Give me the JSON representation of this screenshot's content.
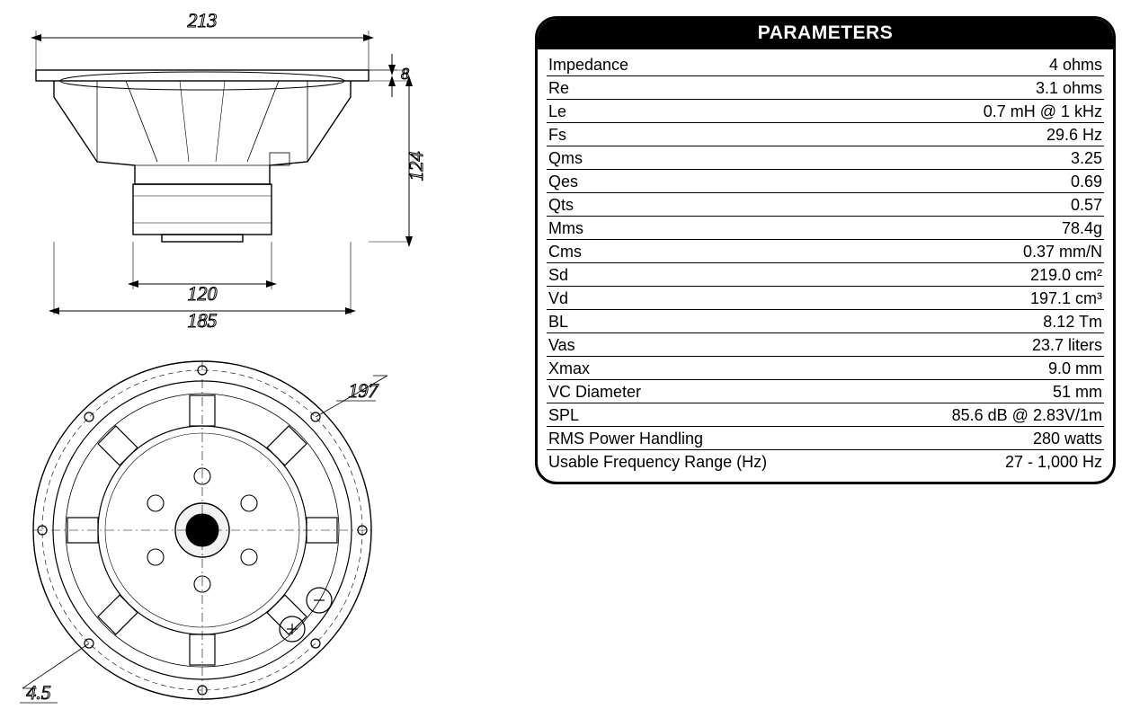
{
  "parameters": {
    "title": "PARAMETERS",
    "rows": [
      {
        "label": "Impedance",
        "value": "4 ohms"
      },
      {
        "label": "Re",
        "value": "3.1 ohms"
      },
      {
        "label": "Le",
        "value": "0.7 mH @ 1 kHz"
      },
      {
        "label": "Fs",
        "value": "29.6 Hz"
      },
      {
        "label": "Qms",
        "value": "3.25"
      },
      {
        "label": "Qes",
        "value": "0.69"
      },
      {
        "label": "Qts",
        "value": "0.57"
      },
      {
        "label": "Mms",
        "value": "78.4g"
      },
      {
        "label": "Cms",
        "value": "0.37 mm/N"
      },
      {
        "label": "Sd",
        "value": "219.0 cm²"
      },
      {
        "label": "Vd",
        "value": "197.1 cm³"
      },
      {
        "label": "BL",
        "value": "8.12 Tm"
      },
      {
        "label": "Vas",
        "value": "23.7 liters"
      },
      {
        "label": "Xmax",
        "value": "9.0 mm"
      },
      {
        "label": "VC Diameter",
        "value": "51 mm"
      },
      {
        "label": "SPL",
        "value": "85.6 dB @ 2.83V/1m"
      },
      {
        "label": "RMS Power Handling",
        "value": "280 watts"
      },
      {
        "label": "Usable Frequency Range (Hz)",
        "value": "27 - 1,000 Hz"
      }
    ],
    "style": {
      "border_color": "#000000",
      "border_width": 3,
      "border_radius": 24,
      "header_bg": "#000000",
      "header_fg": "#ffffff",
      "header_fontsize": 21,
      "row_fontsize": 18,
      "row_divider_color": "#000000"
    }
  },
  "drawing": {
    "type": "engineering-diagram",
    "dimension_font": "italic serif",
    "dimension_fontsize": 18,
    "stroke_color": "#000000",
    "side_view": {
      "dimensions": {
        "overall_width": "213",
        "flange_thickness": "8",
        "overall_height": "124",
        "magnet_width": "120",
        "cutout_width": "185"
      }
    },
    "back_view": {
      "dimensions": {
        "bolt_circle": "197",
        "hole_diameter": "4.5"
      }
    }
  }
}
